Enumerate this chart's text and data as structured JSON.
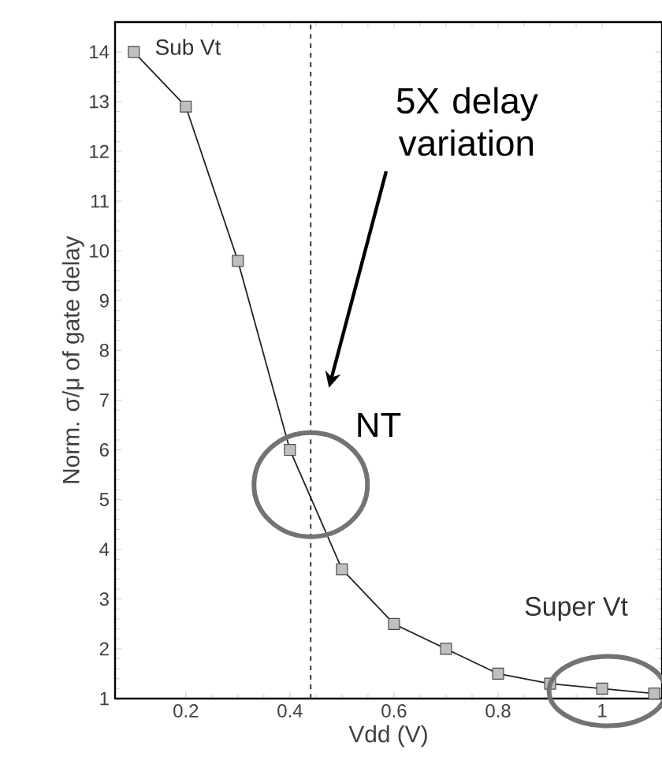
{
  "chart_data": {
    "type": "line",
    "xlabel": "Vdd (V)",
    "ylabel": "Norm. σ/μ of gate delay",
    "x": [
      0.1,
      0.2,
      0.3,
      0.4,
      0.5,
      0.6,
      0.7,
      0.8,
      0.9,
      1.0,
      1.1
    ],
    "values": [
      14,
      12.9,
      9.8,
      6.0,
      3.6,
      2.5,
      2.0,
      1.5,
      1.3,
      1.2,
      1.1
    ],
    "color": "#222222",
    "marker": "square",
    "line_style": "solid",
    "grid": false,
    "xlim": [
      0.064,
      1.115
    ],
    "ylim": [
      1,
      14.6
    ],
    "xticks": [
      0.2,
      0.4,
      0.6,
      0.8,
      1
    ],
    "yticks": [
      1,
      2,
      3,
      4,
      5,
      6,
      7,
      8,
      9,
      10,
      11,
      12,
      13,
      14
    ],
    "ref_lines": [
      {
        "axis": "x",
        "value": 0.44,
        "line_style": "dashed",
        "color": "#222222"
      }
    ],
    "annotations": [
      "Sub Vt",
      "5X delay variation",
      "NT",
      "Super Vt"
    ]
  }
}
